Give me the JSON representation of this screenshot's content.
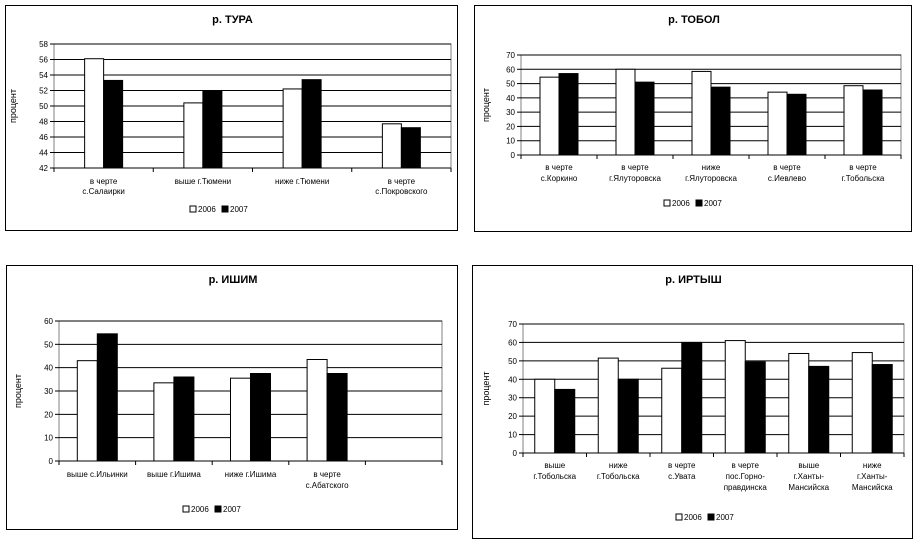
{
  "chart_data": [
    {
      "type": "bar",
      "title": "р. ТУРА",
      "ylabel": "процент",
      "xlabel": "",
      "ylim": [
        42,
        58
      ],
      "yticks": [
        42,
        44,
        46,
        48,
        50,
        52,
        54,
        56,
        58
      ],
      "categories": [
        [
          "в черте",
          "с.Салаирки"
        ],
        [
          "выше г.Тюмени"
        ],
        [
          "ниже г.Тюмени"
        ],
        [
          "в черте",
          "с.Покровского"
        ]
      ],
      "series": [
        {
          "name": "2006",
          "color": "#ffffff",
          "values": [
            56.1,
            50.4,
            52.2,
            47.7
          ]
        },
        {
          "name": "2007",
          "color": "#000000",
          "values": [
            53.3,
            52.0,
            53.4,
            47.2
          ]
        }
      ],
      "legend": "bottom"
    },
    {
      "type": "bar",
      "title": "р. ТОБОЛ",
      "ylabel": "процент",
      "xlabel": "",
      "ylim": [
        0,
        70
      ],
      "yticks": [
        0,
        10,
        20,
        30,
        40,
        50,
        60,
        70
      ],
      "categories": [
        [
          "в черте",
          "с.Коркино"
        ],
        [
          "в черте",
          "г.Ялуторовска"
        ],
        [
          "ниже",
          "г.Ялуторовска"
        ],
        [
          "в черте",
          "с.Иевлево"
        ],
        [
          "в черте",
          "г.Тобольска"
        ]
      ],
      "series": [
        {
          "name": "2006",
          "color": "#ffffff",
          "values": [
            54.5,
            60.0,
            58.5,
            44.0,
            48.5
          ]
        },
        {
          "name": "2007",
          "color": "#000000",
          "values": [
            57.0,
            51.0,
            47.5,
            42.5,
            45.5
          ]
        }
      ],
      "legend": "bottom"
    },
    {
      "type": "bar",
      "title": "р. ИШИМ",
      "ylabel": "процент",
      "xlabel": "",
      "ylim": [
        0,
        60
      ],
      "yticks": [
        0,
        10,
        20,
        30,
        40,
        50,
        60
      ],
      "categories": [
        [
          "выше с.Ильинки"
        ],
        [
          "выше г.Ишима"
        ],
        [
          "ниже г.Ишима"
        ],
        [
          "в черте",
          "с.Абатского"
        ],
        [
          ""
        ]
      ],
      "series": [
        {
          "name": "2006",
          "color": "#ffffff",
          "values": [
            43.0,
            33.5,
            35.5,
            43.5,
            null
          ]
        },
        {
          "name": "2007",
          "color": "#000000",
          "values": [
            54.5,
            36.0,
            37.5,
            37.5,
            null
          ]
        }
      ],
      "legend": "bottom"
    },
    {
      "type": "bar",
      "title": "р. ИРТЫШ",
      "ylabel": "процент",
      "xlabel": "",
      "ylim": [
        0,
        70
      ],
      "yticks": [
        0,
        10,
        20,
        30,
        40,
        50,
        60,
        70
      ],
      "categories": [
        [
          "выше",
          "г.Тобольска"
        ],
        [
          "ниже",
          "г.Тобольска"
        ],
        [
          "в черте",
          "с.Увата"
        ],
        [
          "в черте",
          "пос.Горно-",
          "правдинска"
        ],
        [
          "выше",
          "г.Ханты-",
          "Мансийска"
        ],
        [
          "ниже",
          "г.Ханты-",
          "Мансийска"
        ]
      ],
      "series": [
        {
          "name": "2006",
          "color": "#ffffff",
          "values": [
            40.0,
            51.5,
            46.0,
            61.0,
            54.0,
            54.5
          ]
        },
        {
          "name": "2007",
          "color": "#000000",
          "values": [
            34.5,
            40.0,
            60.0,
            49.5,
            47.0,
            48.0
          ]
        }
      ],
      "legend": "bottom"
    }
  ]
}
